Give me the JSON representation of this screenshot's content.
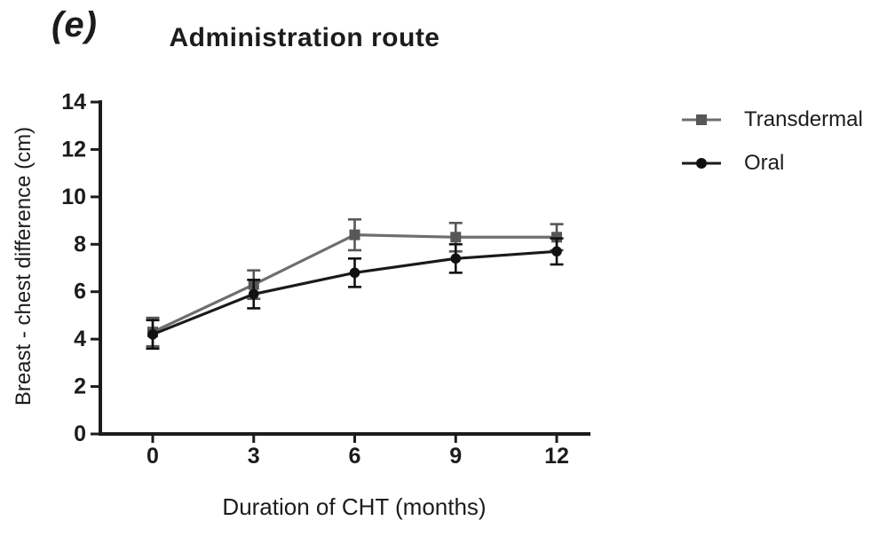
{
  "figure": {
    "panel_label": "(e)",
    "title": "Administration route"
  },
  "chart_data": {
    "type": "line",
    "title": "Administration route",
    "xlabel": "Duration of CHT (months)",
    "ylabel": "Breast - chest difference (cm)",
    "x": [
      0,
      3,
      6,
      9,
      12
    ],
    "xticks": [
      0,
      3,
      6,
      9,
      12
    ],
    "yticks": [
      0,
      2,
      4,
      6,
      8,
      10,
      12,
      14
    ],
    "ylim": [
      0,
      14
    ],
    "grid": false,
    "legend_position": "right",
    "axis_color": "#1c1c1c",
    "series": [
      {
        "name": "Transdermal",
        "marker": "square",
        "color": "#6e6e6e",
        "marker_color": "#575757",
        "values": [
          4.3,
          6.3,
          8.4,
          8.3,
          8.3
        ],
        "errors": [
          0.6,
          0.6,
          0.65,
          0.6,
          0.55
        ]
      },
      {
        "name": "Oral",
        "marker": "circle",
        "color": "#1a1a1a",
        "marker_color": "#111111",
        "values": [
          4.2,
          5.9,
          6.8,
          7.4,
          7.7
        ],
        "errors": [
          0.6,
          0.6,
          0.6,
          0.6,
          0.55
        ]
      }
    ]
  }
}
